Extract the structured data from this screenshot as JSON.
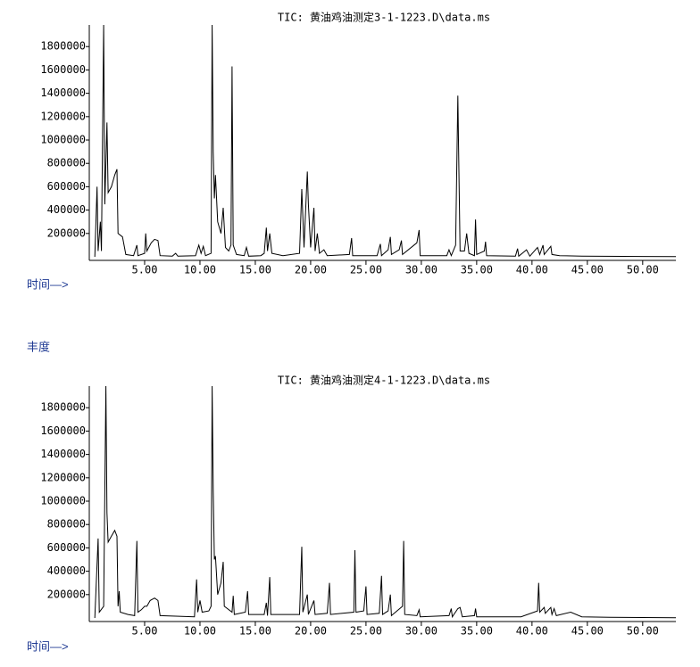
{
  "chart_data": [
    {
      "type": "line",
      "title": "TIC: 黄油鸡油测定3-1-1223.D\\data.ms",
      "x_label": "时间—>",
      "color": "#000000",
      "xlim": [
        0,
        53
      ],
      "ylim": [
        0,
        1985000
      ],
      "xticks": [
        {
          "value": 5,
          "label": "5.00"
        },
        {
          "value": 10,
          "label": "10.00"
        },
        {
          "value": 15,
          "label": "15.00"
        },
        {
          "value": 20,
          "label": "20.00"
        },
        {
          "value": 25,
          "label": "25.00"
        },
        {
          "value": 30,
          "label": "30.00"
        },
        {
          "value": 35,
          "label": "35.00"
        },
        {
          "value": 40,
          "label": "40.00"
        },
        {
          "value": 45,
          "label": "45.00"
        },
        {
          "value": 50,
          "label": "50.00"
        }
      ],
      "yticks": [
        200000,
        400000,
        600000,
        800000,
        1000000,
        1200000,
        1400000,
        1600000,
        1800000
      ],
      "x": [
        0.5,
        0.7,
        0.8,
        1.0,
        1.1,
        1.3,
        1.4,
        1.6,
        1.7,
        2.0,
        2.3,
        2.5,
        2.6,
        3.0,
        3.3,
        4.0,
        4.3,
        4.4,
        5.0,
        5.1,
        5.2,
        5.6,
        5.9,
        6.2,
        6.4,
        7.5,
        7.8,
        8.0,
        9.6,
        9.9,
        10.1,
        10.3,
        10.5,
        11.0,
        11.1,
        11.2,
        11.3,
        11.4,
        11.6,
        11.9,
        12.1,
        12.3,
        12.6,
        12.8,
        12.9,
        13.0,
        13.3,
        14.0,
        14.2,
        14.4,
        15.5,
        15.8,
        16.0,
        16.1,
        16.3,
        16.5,
        17.5,
        19.0,
        19.2,
        19.4,
        19.7,
        19.8,
        20.0,
        20.3,
        20.4,
        20.6,
        20.8,
        21.2,
        21.5,
        23.5,
        23.7,
        23.8,
        26.0,
        26.3,
        26.4,
        27.0,
        27.2,
        27.3,
        28.0,
        28.2,
        28.3,
        29.6,
        29.8,
        29.9,
        32.3,
        32.5,
        32.7,
        33.1,
        33.3,
        33.4,
        33.5,
        33.9,
        34.1,
        34.3,
        34.8,
        34.9,
        35.0,
        35.7,
        35.8,
        35.9,
        38.5,
        38.7,
        38.8,
        39.5,
        39.8,
        40.5,
        40.7,
        41.0,
        41.1,
        41.7,
        41.8,
        42.5,
        44.5,
        50.0,
        53.0
      ],
      "values": [
        0,
        600000,
        50000,
        300000,
        50000,
        1985000,
        450000,
        1150000,
        550000,
        600000,
        700000,
        750000,
        200000,
        170000,
        20000,
        10000,
        100000,
        10000,
        30000,
        200000,
        50000,
        120000,
        150000,
        140000,
        10000,
        5000,
        30000,
        5000,
        10000,
        100000,
        30000,
        90000,
        10000,
        30000,
        1985000,
        900000,
        500000,
        700000,
        300000,
        200000,
        420000,
        80000,
        50000,
        100000,
        1630000,
        100000,
        20000,
        10000,
        80000,
        5000,
        10000,
        30000,
        250000,
        50000,
        200000,
        30000,
        10000,
        30000,
        580000,
        80000,
        730000,
        450000,
        80000,
        420000,
        50000,
        200000,
        30000,
        60000,
        10000,
        20000,
        160000,
        10000,
        10000,
        110000,
        10000,
        60000,
        170000,
        20000,
        60000,
        140000,
        20000,
        120000,
        230000,
        10000,
        10000,
        60000,
        10000,
        100000,
        1380000,
        730000,
        50000,
        50000,
        200000,
        30000,
        10000,
        320000,
        20000,
        50000,
        130000,
        10000,
        5000,
        70000,
        5000,
        60000,
        5000,
        80000,
        20000,
        100000,
        20000,
        90000,
        20000,
        10000,
        5000,
        3000,
        2000
      ]
    },
    {
      "type": "line",
      "title": "TIC: 黄油鸡油测定4-1-1223.D\\data.ms",
      "x_label": "时间—>",
      "y_label": "丰度",
      "color": "#000000",
      "xlim": [
        0,
        53
      ],
      "ylim": [
        0,
        1985000
      ],
      "xticks": [
        {
          "value": 5,
          "label": "5.00"
        },
        {
          "value": 10,
          "label": "10.00"
        },
        {
          "value": 15,
          "label": "15.00"
        },
        {
          "value": 20,
          "label": "20.00"
        },
        {
          "value": 25,
          "label": "25.00"
        },
        {
          "value": 30,
          "label": "30.00"
        },
        {
          "value": 35,
          "label": "35.00"
        },
        {
          "value": 40,
          "label": "40.00"
        },
        {
          "value": 45,
          "label": "45.00"
        },
        {
          "value": 50,
          "label": "50.00"
        }
      ],
      "yticks": [
        200000,
        400000,
        600000,
        800000,
        1000000,
        1200000,
        1400000,
        1600000,
        1800000
      ],
      "x": [
        0.5,
        0.8,
        0.9,
        1.3,
        1.5,
        1.6,
        1.7,
        2.0,
        2.3,
        2.5,
        2.6,
        2.7,
        2.8,
        3.5,
        4.1,
        4.3,
        4.4,
        4.7,
        5.0,
        5.2,
        5.5,
        5.9,
        6.2,
        6.4,
        9.5,
        9.7,
        9.8,
        10.0,
        10.2,
        10.8,
        11.0,
        11.1,
        11.2,
        11.3,
        11.4,
        11.6,
        11.9,
        12.1,
        12.2,
        12.9,
        13.0,
        13.1,
        14.1,
        14.3,
        14.4,
        15.8,
        16.0,
        16.1,
        16.3,
        16.4,
        19.0,
        19.2,
        19.3,
        19.7,
        19.8,
        20.3,
        20.4,
        21.5,
        21.7,
        21.8,
        23.9,
        24.0,
        24.1,
        24.8,
        25.0,
        25.1,
        26.2,
        26.4,
        26.5,
        27.0,
        27.2,
        27.3,
        28.3,
        28.4,
        28.5,
        29.6,
        29.8,
        29.9,
        32.5,
        32.7,
        32.8,
        33.3,
        33.5,
        33.7,
        34.8,
        34.9,
        35.0,
        39.0,
        40.5,
        40.6,
        40.7,
        41.1,
        41.2,
        41.7,
        41.8,
        42.0,
        42.2,
        43.5,
        44.5,
        47.0,
        53.0
      ],
      "values": [
        0,
        680000,
        50000,
        100000,
        1985000,
        900000,
        650000,
        700000,
        750000,
        700000,
        100000,
        230000,
        50000,
        30000,
        20000,
        660000,
        50000,
        70000,
        100000,
        100000,
        150000,
        170000,
        150000,
        20000,
        10000,
        330000,
        50000,
        150000,
        50000,
        60000,
        100000,
        1985000,
        1100000,
        500000,
        530000,
        200000,
        300000,
        480000,
        100000,
        50000,
        190000,
        30000,
        50000,
        230000,
        30000,
        30000,
        130000,
        20000,
        350000,
        30000,
        30000,
        610000,
        50000,
        200000,
        30000,
        150000,
        30000,
        40000,
        300000,
        30000,
        50000,
        580000,
        50000,
        60000,
        270000,
        30000,
        40000,
        360000,
        30000,
        60000,
        200000,
        20000,
        100000,
        660000,
        30000,
        20000,
        70000,
        10000,
        20000,
        80000,
        10000,
        80000,
        90000,
        10000,
        20000,
        80000,
        10000,
        10000,
        60000,
        300000,
        50000,
        90000,
        40000,
        90000,
        30000,
        80000,
        20000,
        50000,
        10000,
        5000,
        2000
      ]
    }
  ]
}
